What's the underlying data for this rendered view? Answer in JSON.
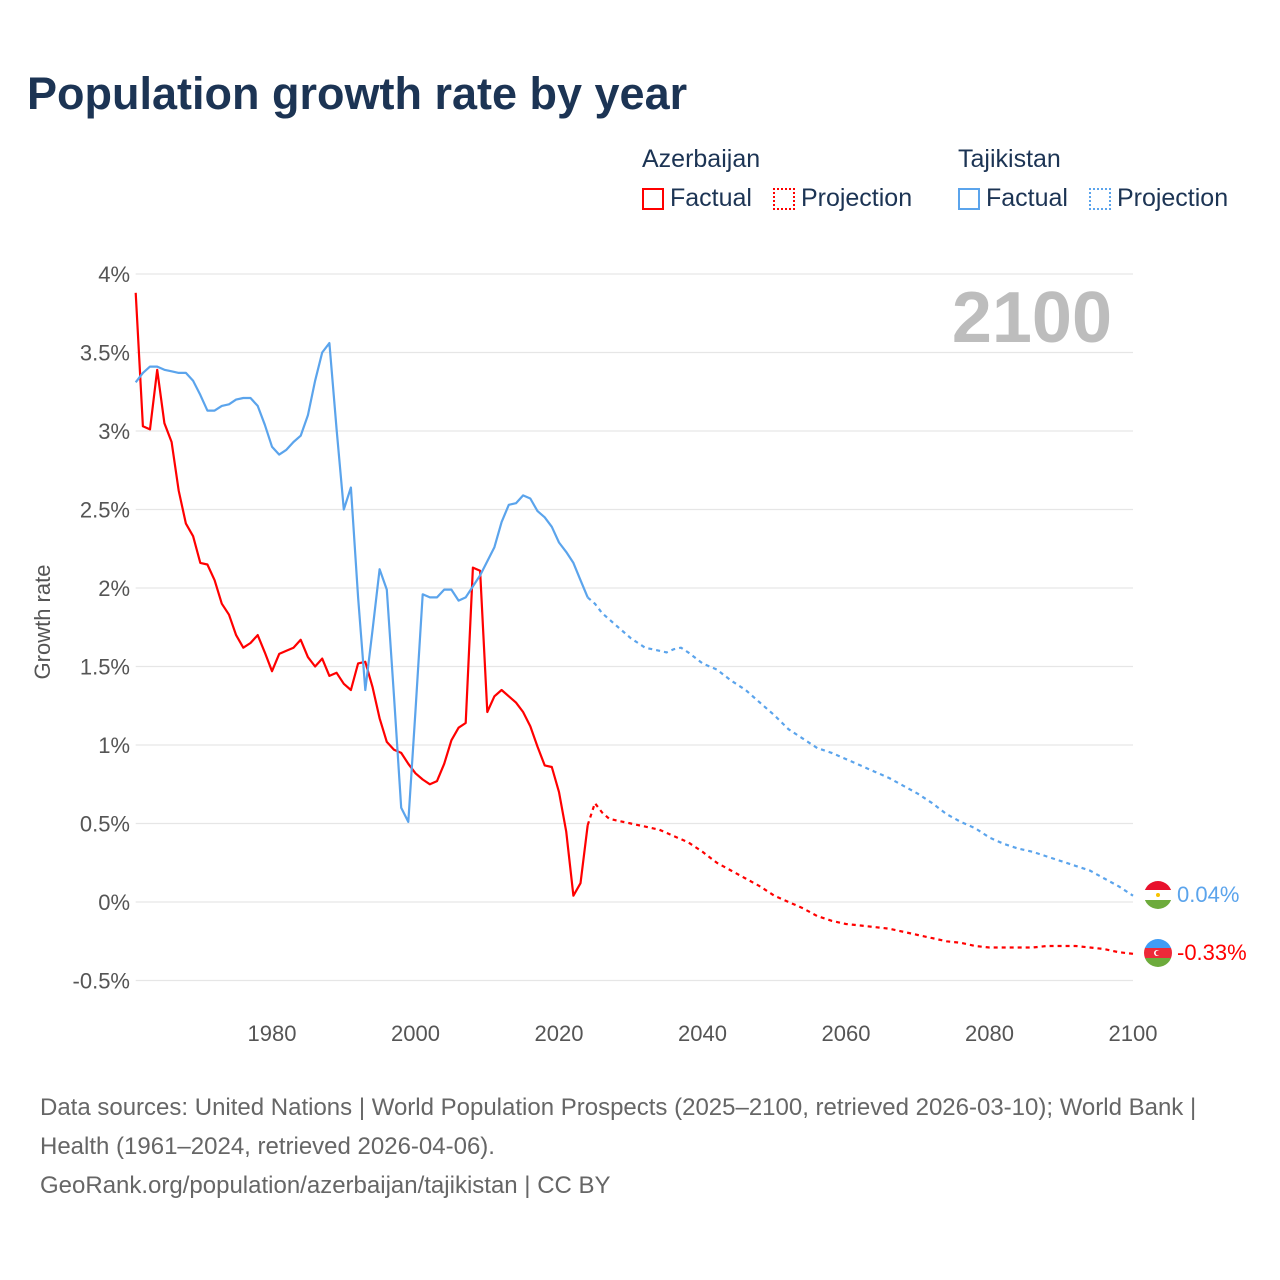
{
  "title": "Population growth rate by year",
  "legend": {
    "groups": [
      {
        "name": "Azerbaijan",
        "color": "#ff0000",
        "factual_label": "Factual",
        "projection_label": "Projection"
      },
      {
        "name": "Tajikistan",
        "color": "#5ba4ec",
        "factual_label": "Factual",
        "projection_label": "Projection"
      }
    ]
  },
  "year_label": "2100",
  "end_labels": {
    "tajikistan": "0.04%",
    "azerbaijan": "-0.33%"
  },
  "footer": {
    "sources": "Data sources: United Nations | World Population Prospects (2025–2100, retrieved 2026-03-10); World Bank | Health (1961–2024, retrieved 2026-04-06).",
    "credit": "GeoRank.org/population/azerbaijan/tajikistan | CC BY"
  },
  "chart_data": {
    "type": "line",
    "title": "Population growth rate by year",
    "xlabel": "",
    "ylabel": "Growth rate",
    "xlim": [
      1961,
      2100
    ],
    "ylim": [
      -0.6,
      4.0
    ],
    "x_ticks": [
      1980,
      2000,
      2020,
      2040,
      2060,
      2080,
      2100
    ],
    "y_ticks": [
      -0.5,
      0,
      0.5,
      1,
      1.5,
      2,
      2.5,
      3,
      3.5,
      4
    ],
    "y_tick_labels": [
      "-0.5%",
      "0%",
      "0.5%",
      "1%",
      "1.5%",
      "2%",
      "2.5%",
      "3%",
      "3.5%",
      "4%"
    ],
    "grid": true,
    "series": [
      {
        "name": "Azerbaijan Factual",
        "color": "#ff0000",
        "style": "solid",
        "x": [
          1961,
          1962,
          1963,
          1964,
          1965,
          1966,
          1967,
          1968,
          1969,
          1970,
          1971,
          1972,
          1973,
          1974,
          1975,
          1976,
          1977,
          1978,
          1979,
          1980,
          1981,
          1982,
          1983,
          1984,
          1985,
          1986,
          1987,
          1988,
          1989,
          1990,
          1991,
          1992,
          1993,
          1994,
          1995,
          1996,
          1997,
          1998,
          1999,
          2000,
          2001,
          2002,
          2003,
          2004,
          2005,
          2006,
          2007,
          2008,
          2009,
          2010,
          2011,
          2012,
          2013,
          2014,
          2015,
          2016,
          2017,
          2018,
          2019,
          2020,
          2021,
          2022,
          2023,
          2024
        ],
        "y": [
          3.88,
          3.03,
          3.01,
          3.39,
          3.05,
          2.93,
          2.62,
          2.41,
          2.33,
          2.16,
          2.15,
          2.05,
          1.9,
          1.83,
          1.7,
          1.62,
          1.65,
          1.7,
          1.59,
          1.47,
          1.58,
          1.6,
          1.62,
          1.67,
          1.56,
          1.5,
          1.55,
          1.44,
          1.46,
          1.39,
          1.35,
          1.52,
          1.53,
          1.37,
          1.17,
          1.02,
          0.97,
          0.95,
          0.88,
          0.82,
          0.78,
          0.75,
          0.77,
          0.88,
          1.03,
          1.11,
          1.14,
          2.13,
          2.11,
          1.21,
          1.31,
          1.35,
          1.31,
          1.27,
          1.21,
          1.12,
          0.99,
          0.87,
          0.86,
          0.7,
          0.45,
          0.04,
          0.12,
          0.49
        ]
      },
      {
        "name": "Azerbaijan Projection",
        "color": "#ff0000",
        "style": "dotted",
        "x": [
          2024,
          2025,
          2026,
          2027,
          2028,
          2030,
          2032,
          2034,
          2036,
          2038,
          2040,
          2042,
          2044,
          2046,
          2048,
          2050,
          2052,
          2054,
          2056,
          2058,
          2060,
          2062,
          2064,
          2066,
          2068,
          2070,
          2072,
          2074,
          2076,
          2078,
          2080,
          2082,
          2084,
          2086,
          2088,
          2090,
          2092,
          2094,
          2096,
          2098,
          2100
        ],
        "y": [
          0.49,
          0.63,
          0.57,
          0.53,
          0.52,
          0.5,
          0.48,
          0.46,
          0.42,
          0.38,
          0.32,
          0.25,
          0.2,
          0.15,
          0.1,
          0.04,
          0.0,
          -0.04,
          -0.09,
          -0.12,
          -0.14,
          -0.15,
          -0.16,
          -0.17,
          -0.19,
          -0.21,
          -0.23,
          -0.25,
          -0.26,
          -0.28,
          -0.29,
          -0.29,
          -0.29,
          -0.29,
          -0.28,
          -0.28,
          -0.28,
          -0.29,
          -0.3,
          -0.32,
          -0.33
        ]
      },
      {
        "name": "Tajikistan Factual",
        "color": "#5ba4ec",
        "style": "solid",
        "x": [
          1961,
          1962,
          1963,
          1964,
          1965,
          1966,
          1967,
          1968,
          1969,
          1970,
          1971,
          1972,
          1973,
          1974,
          1975,
          1976,
          1977,
          1978,
          1979,
          1980,
          1981,
          1982,
          1983,
          1984,
          1985,
          1986,
          1987,
          1988,
          1989,
          1990,
          1991,
          1992,
          1993,
          1994,
          1995,
          1996,
          1997,
          1998,
          1999,
          2000,
          2001,
          2002,
          2003,
          2004,
          2005,
          2006,
          2007,
          2008,
          2009,
          2010,
          2011,
          2012,
          2013,
          2014,
          2015,
          2016,
          2017,
          2018,
          2019,
          2020,
          2021,
          2022,
          2023,
          2024
        ],
        "y": [
          3.31,
          3.37,
          3.41,
          3.41,
          3.39,
          3.38,
          3.37,
          3.37,
          3.32,
          3.23,
          3.13,
          3.13,
          3.16,
          3.17,
          3.2,
          3.21,
          3.21,
          3.16,
          3.04,
          2.9,
          2.85,
          2.88,
          2.93,
          2.97,
          3.1,
          3.32,
          3.5,
          3.56,
          3.01,
          2.5,
          2.64,
          1.94,
          1.35,
          1.73,
          2.12,
          1.99,
          1.31,
          0.6,
          0.51,
          1.22,
          1.96,
          1.94,
          1.94,
          1.99,
          1.99,
          1.92,
          1.94,
          2.01,
          2.08,
          2.17,
          2.26,
          2.42,
          2.53,
          2.54,
          2.59,
          2.57,
          2.49,
          2.45,
          2.39,
          2.29,
          2.23,
          2.16,
          2.05,
          1.94
        ]
      },
      {
        "name": "Tajikistan Projection",
        "color": "#5ba4ec",
        "style": "dotted",
        "x": [
          2024,
          2025,
          2026,
          2028,
          2030,
          2032,
          2034,
          2035,
          2036,
          2037,
          2038,
          2040,
          2042,
          2044,
          2046,
          2048,
          2050,
          2052,
          2054,
          2056,
          2058,
          2060,
          2062,
          2064,
          2066,
          2068,
          2070,
          2072,
          2074,
          2076,
          2078,
          2080,
          2082,
          2084,
          2086,
          2088,
          2090,
          2092,
          2094,
          2096,
          2098,
          2100
        ],
        "y": [
          1.94,
          1.9,
          1.84,
          1.76,
          1.68,
          1.62,
          1.6,
          1.59,
          1.61,
          1.62,
          1.59,
          1.52,
          1.48,
          1.41,
          1.35,
          1.27,
          1.19,
          1.1,
          1.04,
          0.98,
          0.95,
          0.91,
          0.87,
          0.83,
          0.79,
          0.74,
          0.69,
          0.63,
          0.56,
          0.51,
          0.47,
          0.41,
          0.37,
          0.34,
          0.32,
          0.29,
          0.26,
          0.23,
          0.2,
          0.15,
          0.1,
          0.04
        ]
      }
    ]
  }
}
